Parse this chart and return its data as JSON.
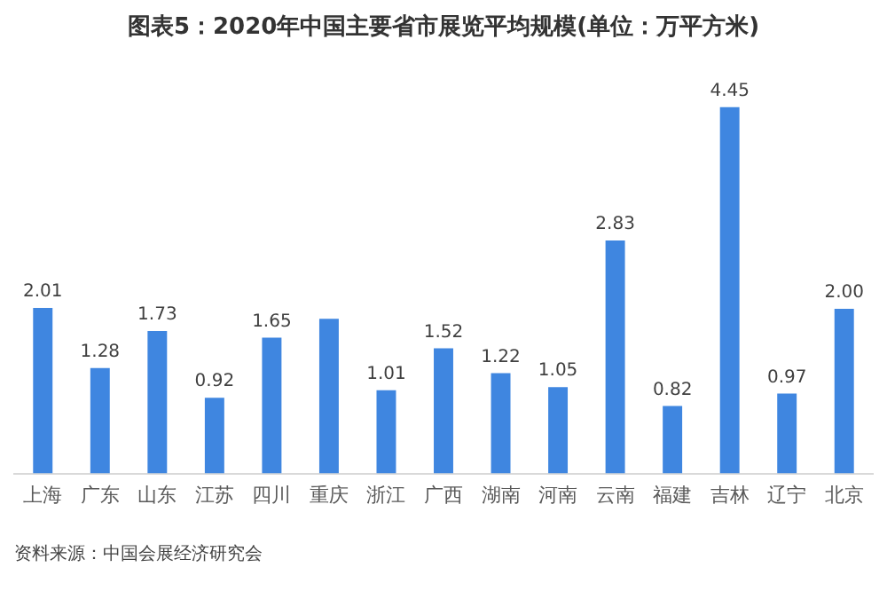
{
  "chart_data": {
    "type": "bar",
    "title": "图表5：2020年中国主要省市展览平均规模(单位：万平方米)",
    "categories": [
      "上海",
      "广东",
      "山东",
      "江苏",
      "四川",
      "重庆",
      "浙江",
      "广西",
      "湖南",
      "河南",
      "云南",
      "福建",
      "吉林",
      "辽宁",
      "北京"
    ],
    "values": [
      2.01,
      1.28,
      1.73,
      0.92,
      1.65,
      1.88,
      1.01,
      1.52,
      1.22,
      1.05,
      2.83,
      0.82,
      4.45,
      0.97,
      2.0
    ],
    "value_labels": [
      "2.01",
      "1.28",
      "1.73",
      "0.92",
      "1.65",
      null,
      "1.01",
      "1.52",
      "1.22",
      "1.05",
      "2.83",
      "0.82",
      "4.45",
      "0.97",
      "2.00"
    ],
    "color": "#3f86e0",
    "tick_labels": "x",
    "grid": false,
    "legend": false,
    "annotations": [
      "资料来源：中国会展经济研究会"
    ]
  }
}
